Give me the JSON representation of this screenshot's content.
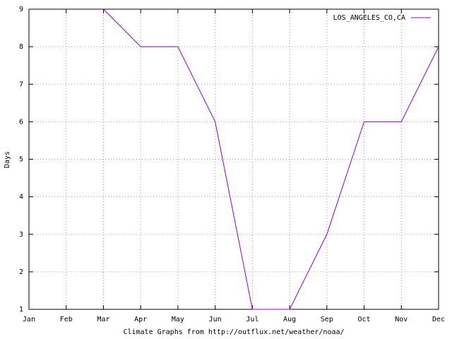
{
  "chart_data": {
    "type": "line",
    "x_label": "Climate Graphs from http://outflux.net/weather/noaa/",
    "y_label": "Days",
    "categories": [
      "Jan",
      "Feb",
      "Mar",
      "Apr",
      "May",
      "Jun",
      "Jul",
      "Aug",
      "Sep",
      "Oct",
      "Nov",
      "Dec"
    ],
    "series": [
      {
        "name": "LOS_ANGELES_CO,CA",
        "color": "#9400d3",
        "values": [
          null,
          null,
          9,
          8,
          8,
          6,
          1,
          1,
          3,
          6,
          6,
          8
        ]
      }
    ],
    "ylim": [
      1,
      9
    ],
    "yticks": [
      1,
      2,
      3,
      4,
      5,
      6,
      7,
      8,
      9
    ],
    "grid": true,
    "legend_position": "top-right"
  }
}
